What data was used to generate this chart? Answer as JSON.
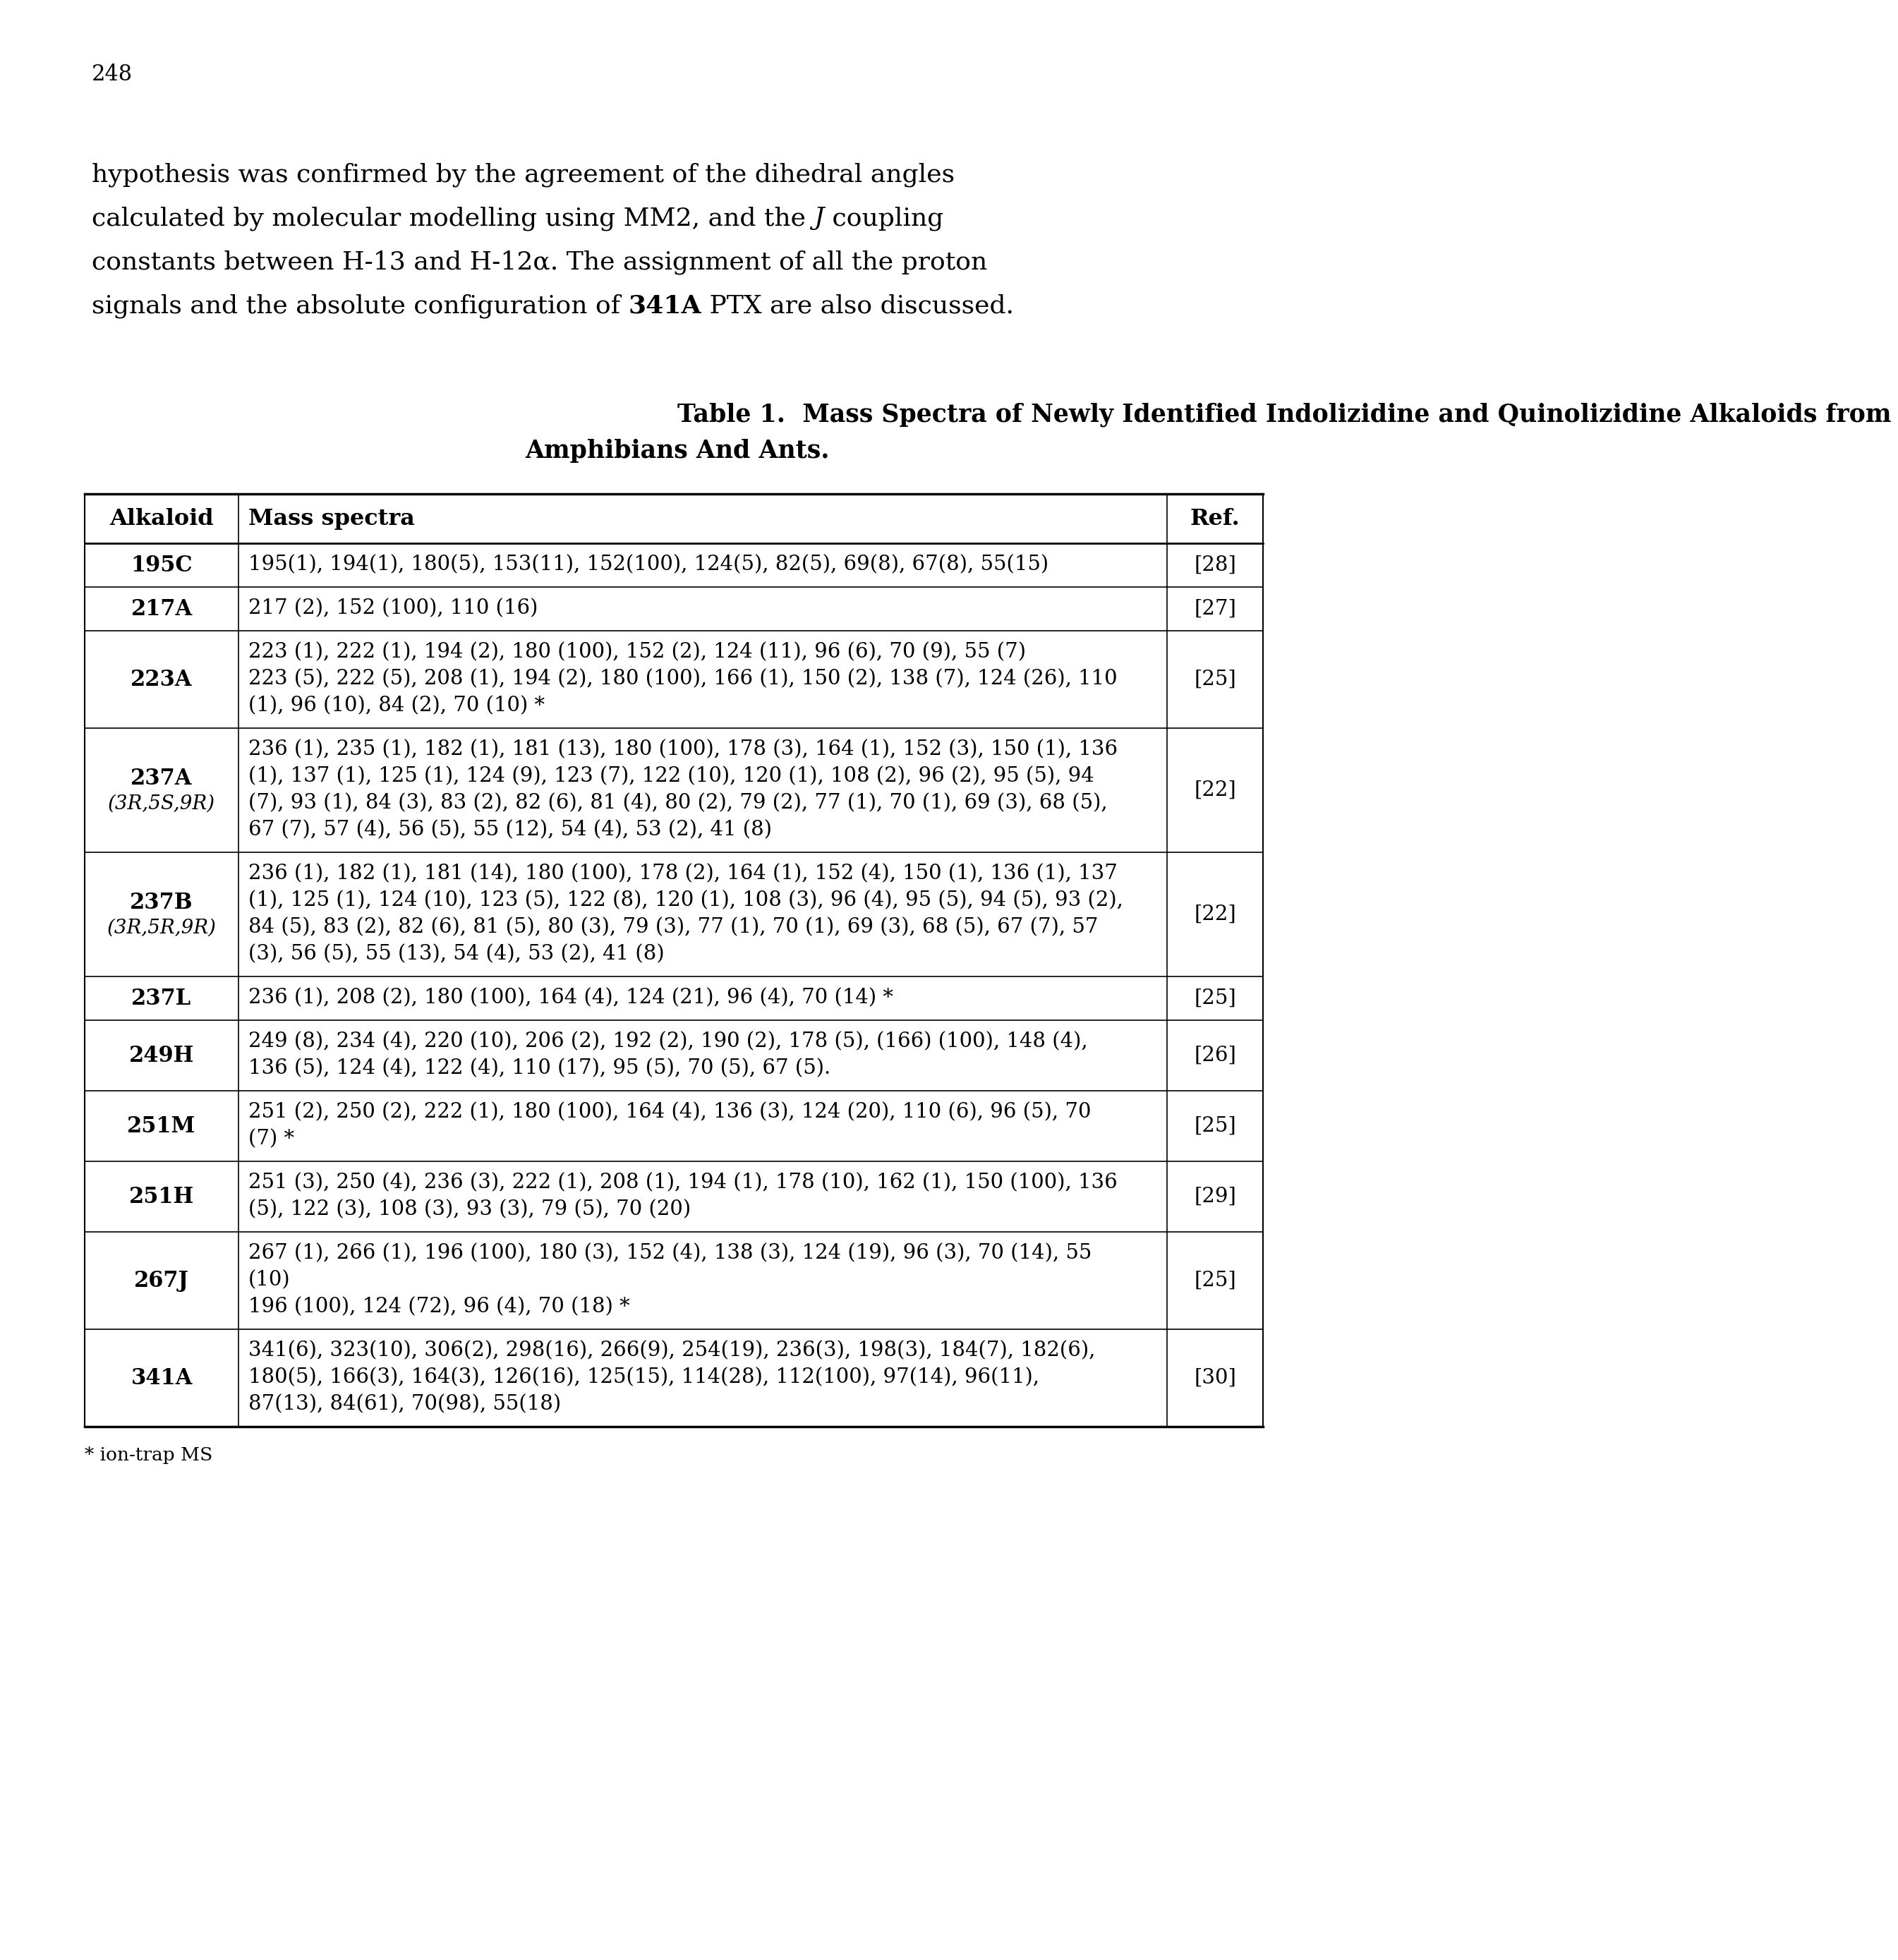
{
  "page_number": "248",
  "para_lines": [
    "hypothesis was confirmed by the agreement of the dihedral angles",
    "calculated by molecular modelling using MM2, and the J coupling",
    "constants between H-13 and H-12α. The assignment of all the proton",
    "signals and the absolute configuration of 341A PTX are also discussed."
  ],
  "para_italic_word": "J",
  "para_bold_word": "341A",
  "table_title1": "Table 1.  Mass Spectra of Newly Identified Indolizidine and Quinolizidine Alkaloids from",
  "table_title2": "Amphibians And Ants.",
  "col_headers": [
    "Alkaloid",
    "Mass spectra",
    "Ref."
  ],
  "footnote": "* ion-trap MS",
  "rows": [
    {
      "alkaloid": "195C",
      "alkaloid_sub": "",
      "spectra": [
        "195(1), 194(1), 180(5), 153(11), 152(100), 124(5), 82(5), 69(8), 67(8), 55(15)"
      ],
      "ref": "[28]"
    },
    {
      "alkaloid": "217A",
      "alkaloid_sub": "",
      "spectra": [
        "217 (2), 152 (100), 110 (16)"
      ],
      "ref": "[27]"
    },
    {
      "alkaloid": "223A",
      "alkaloid_sub": "",
      "spectra": [
        "223 (1), 222 (1), 194 (2), 180 (100), 152 (2), 124 (11), 96 (6), 70 (9), 55 (7)",
        "223 (5), 222 (5), 208 (1), 194 (2), 180 (100), 166 (1), 150 (2), 138 (7), 124 (26), 110",
        "(1), 96 (10), 84 (2), 70 (10) *"
      ],
      "ref": "[25]"
    },
    {
      "alkaloid": "237A",
      "alkaloid_sub": "(3R,5S,9R)",
      "spectra": [
        "236 (1), 235 (1), 182 (1), 181 (13), 180 (100), 178 (3), 164 (1), 152 (3), 150 (1), 136",
        "(1), 137 (1), 125 (1), 124 (9), 123 (7), 122 (10), 120 (1), 108 (2), 96 (2), 95 (5), 94",
        "(7), 93 (1), 84 (3), 83 (2), 82 (6), 81 (4), 80 (2), 79 (2), 77 (1), 70 (1), 69 (3), 68 (5),",
        "67 (7), 57 (4), 56 (5), 55 (12), 54 (4), 53 (2), 41 (8)"
      ],
      "ref": "[22]"
    },
    {
      "alkaloid": "237B",
      "alkaloid_sub": "(3R,5R,9R)",
      "spectra": [
        "236 (1), 182 (1), 181 (14), 180 (100), 178 (2), 164 (1), 152 (4), 150 (1), 136 (1), 137",
        "(1), 125 (1), 124 (10), 123 (5), 122 (8), 120 (1), 108 (3), 96 (4), 95 (5), 94 (5), 93 (2),",
        "84 (5), 83 (2), 82 (6), 81 (5), 80 (3), 79 (3), 77 (1), 70 (1), 69 (3), 68 (5), 67 (7), 57",
        "(3), 56 (5), 55 (13), 54 (4), 53 (2), 41 (8)"
      ],
      "ref": "[22]"
    },
    {
      "alkaloid": "237L",
      "alkaloid_sub": "",
      "spectra": [
        "236 (1), 208 (2), 180 (100), 164 (4), 124 (21), 96 (4), 70 (14) *"
      ],
      "ref": "[25]"
    },
    {
      "alkaloid": "249H",
      "alkaloid_sub": "",
      "spectra": [
        "249 (8), 234 (4), 220 (10), 206 (2), 192 (2), 190 (2), 178 (5), (166) (100), 148 (4),",
        "136 (5), 124 (4), 122 (4), 110 (17), 95 (5), 70 (5), 67 (5)."
      ],
      "ref": "[26]"
    },
    {
      "alkaloid": "251M",
      "alkaloid_sub": "",
      "spectra": [
        "251 (2), 250 (2), 222 (1), 180 (100), 164 (4), 136 (3), 124 (20), 110 (6), 96 (5), 70",
        "(7) *"
      ],
      "ref": "[25]"
    },
    {
      "alkaloid": "251H",
      "alkaloid_sub": "",
      "spectra": [
        "251 (3), 250 (4), 236 (3), 222 (1), 208 (1), 194 (1), 178 (10), 162 (1), 150 (100), 136",
        "(5), 122 (3), 108 (3), 93 (3), 79 (5), 70 (20)"
      ],
      "ref": "[29]"
    },
    {
      "alkaloid": "267J",
      "alkaloid_sub": "",
      "spectra": [
        "267 (1), 266 (1), 196 (100), 180 (3), 152 (4), 138 (3), 124 (19), 96 (3), 70 (14), 55",
        "(10)",
        "196 (100), 124 (72), 96 (4), 70 (18) *"
      ],
      "ref": "[25]"
    },
    {
      "alkaloid": "341A",
      "alkaloid_sub": "",
      "spectra": [
        "341(6), 323(10), 306(2), 298(16), 266(9), 254(19), 236(3), 198(3), 184(7), 182(6),",
        "180(5), 166(3), 164(3), 126(16), 125(15), 114(28), 112(100), 97(14), 96(11),",
        "87(13), 84(61), 70(98), 55(18)"
      ],
      "ref": "[30]"
    }
  ]
}
